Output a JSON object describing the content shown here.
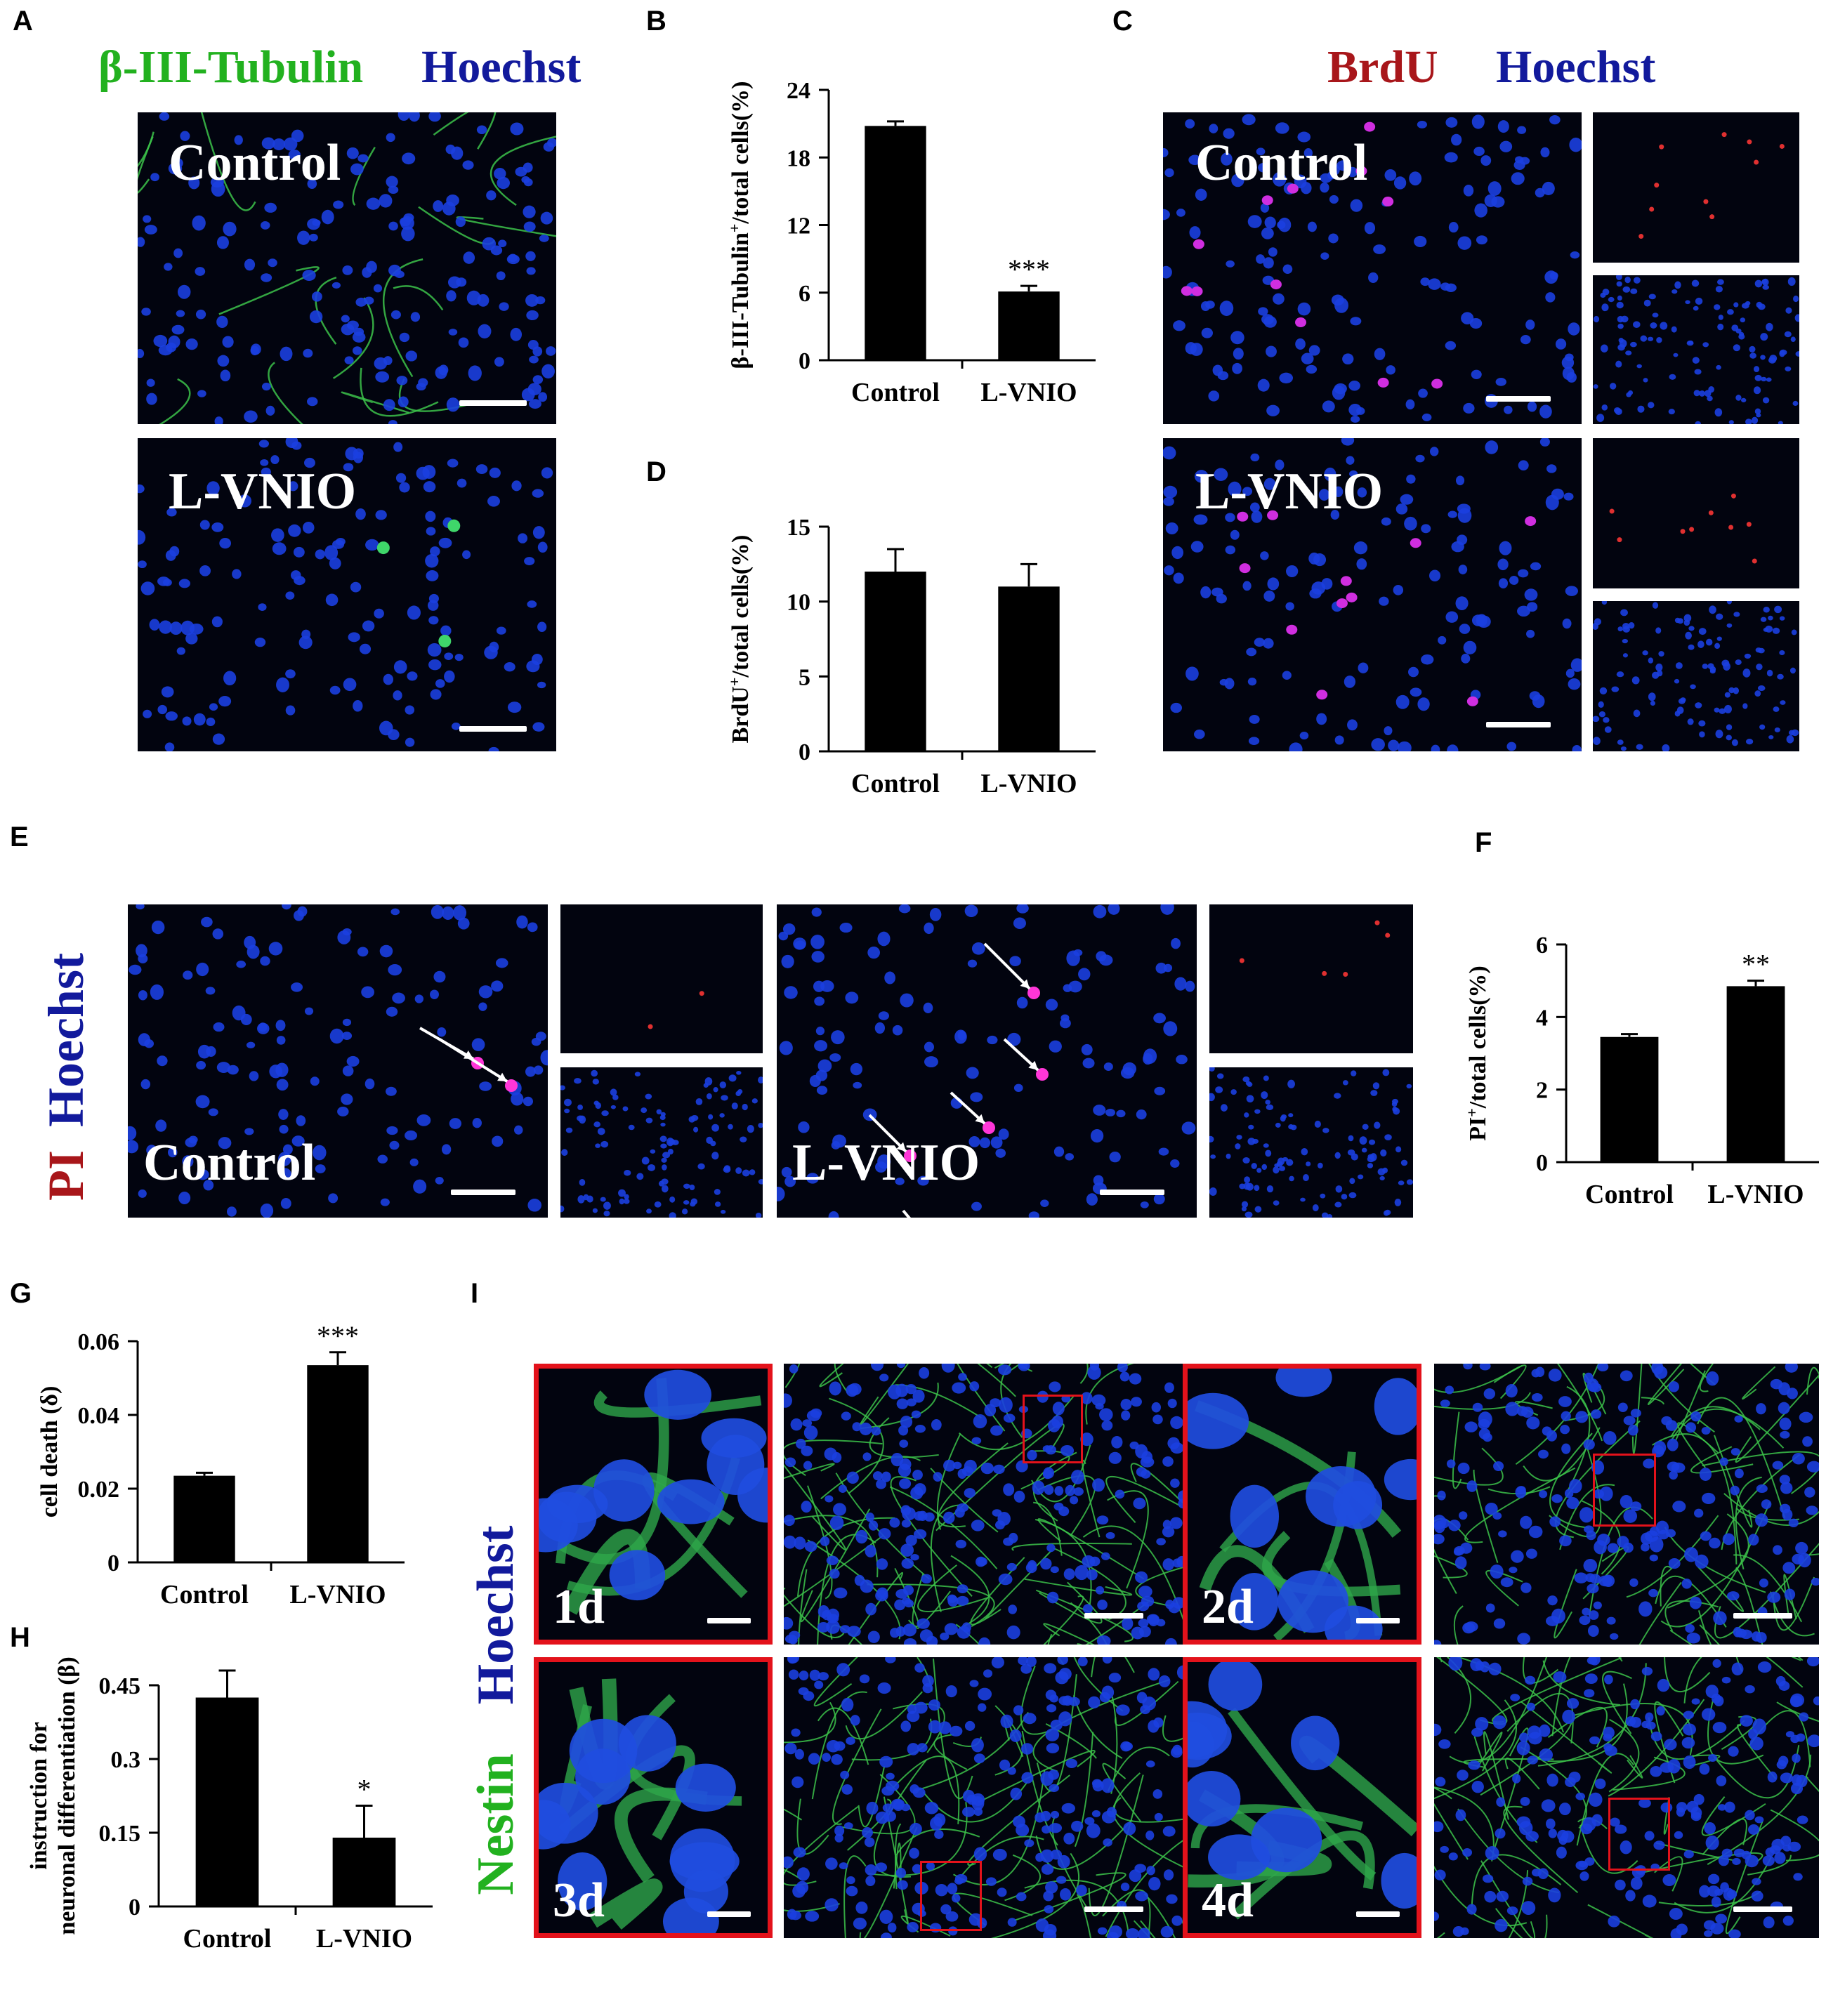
{
  "panels": {
    "A": {
      "letter": "A",
      "stain_green": "β-III-Tubulin",
      "stain_blue": "Hoechst",
      "top_label": "Control",
      "bottom_label": "L-VNIO"
    },
    "B": {
      "letter": "B"
    },
    "C": {
      "letter": "C",
      "stain_red": "BrdU",
      "stain_blue": "Hoechst",
      "top_label": "Control",
      "bottom_label": "L-VNIO"
    },
    "D": {
      "letter": "D"
    },
    "E": {
      "letter": "E",
      "stain_red": "PI",
      "stain_blue": "Hoechst",
      "left_label": "Control",
      "right_label": "L-VNIO"
    },
    "F": {
      "letter": "F"
    },
    "G": {
      "letter": "G"
    },
    "H": {
      "letter": "H"
    },
    "I": {
      "letter": "I",
      "stain_blue": "Hoechst",
      "stain_green": "Nestin",
      "days": [
        "1d",
        "2d",
        "3d",
        "4d"
      ]
    }
  },
  "colors": {
    "green_stain": "#22b11f",
    "blue_stain": "#121a9c",
    "red_stain": "#a8161a",
    "frame_red": "#e3121b",
    "bar_fill": "#000000"
  },
  "chart_data": [
    {
      "panel": "B",
      "type": "bar",
      "categories": [
        "Control",
        "L-VNIO"
      ],
      "values": [
        20.8,
        6.1
      ],
      "errors": [
        0.4,
        0.5
      ],
      "significance": [
        "",
        "***"
      ],
      "ylabel_main": "β-III-Tubulin",
      "ylabel_sup": "+",
      "ylabel_rest": "/total cells(%)",
      "ylim": [
        0,
        24
      ],
      "yticks": [
        0,
        6,
        12,
        18,
        24
      ],
      "ytick_labels": [
        "0",
        "6",
        "12",
        "18",
        "24"
      ]
    },
    {
      "panel": "D",
      "type": "bar",
      "categories": [
        "Control",
        "L-VNIO"
      ],
      "values": [
        12.0,
        11.0
      ],
      "errors": [
        1.5,
        1.5
      ],
      "significance": [
        "",
        ""
      ],
      "ylabel_main": "BrdU",
      "ylabel_sup": "+",
      "ylabel_rest": "/total cells(%)",
      "ylim": [
        0,
        15
      ],
      "yticks": [
        0,
        5,
        10,
        15
      ],
      "ytick_labels": [
        "0",
        "5",
        "10",
        "15"
      ]
    },
    {
      "panel": "F",
      "type": "bar",
      "categories": [
        "Control",
        "L-VNIO"
      ],
      "values": [
        3.45,
        4.85
      ],
      "errors": [
        0.08,
        0.15
      ],
      "significance": [
        "",
        "**"
      ],
      "ylabel_main": "PI",
      "ylabel_sup": "+",
      "ylabel_rest": "/total cells(%)",
      "ylim": [
        0,
        6
      ],
      "yticks": [
        0,
        2,
        4,
        6
      ],
      "ytick_labels": [
        "0",
        "2",
        "4",
        "6"
      ]
    },
    {
      "panel": "G",
      "type": "bar",
      "categories": [
        "Control",
        "L-VNIO"
      ],
      "values": [
        0.0235,
        0.0535
      ],
      "errors": [
        0.0008,
        0.0035
      ],
      "significance": [
        "",
        "***"
      ],
      "ylabel_main": "cell death (δ)",
      "ylabel_sup": "",
      "ylabel_rest": "",
      "ylim": [
        0,
        0.06
      ],
      "yticks": [
        0,
        0.02,
        0.04,
        0.06
      ],
      "ytick_labels": [
        "0",
        "0.02",
        "0.04",
        "0.06"
      ]
    },
    {
      "panel": "H",
      "type": "bar",
      "categories": [
        "Control",
        "L-VNIO"
      ],
      "values": [
        0.425,
        0.14
      ],
      "errors": [
        0.055,
        0.065
      ],
      "significance": [
        "",
        "*"
      ],
      "ylabel_main": "instruction for",
      "ylabel_line2": "neuronal differentiation (β)",
      "ylabel_sup": "",
      "ylabel_rest": "",
      "ylim": [
        0,
        0.45
      ],
      "yticks": [
        0,
        0.15,
        0.3,
        0.45
      ],
      "ytick_labels": [
        "0",
        "0.15",
        "0.3",
        "0.45"
      ]
    }
  ]
}
